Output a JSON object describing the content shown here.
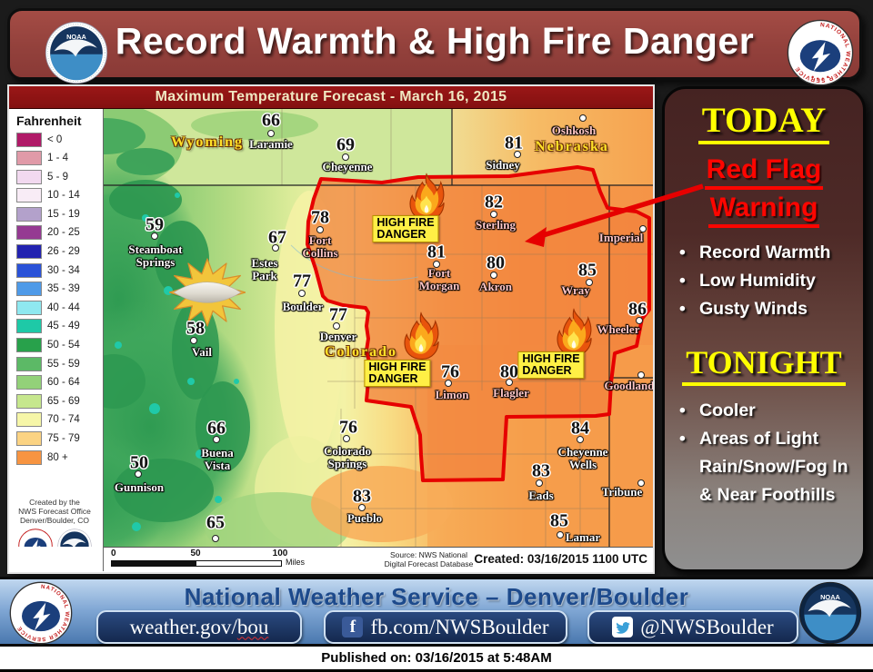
{
  "banner": {
    "title": "Record Warmth & High Fire Danger"
  },
  "logos": {
    "noaa_text": "NOAA",
    "nws_ring": "NATIONAL WEATHER SERVICE"
  },
  "colors": {
    "banner_bg": "#93413c",
    "map_title_bg": "#8e1414",
    "warning_red": "#e60000",
    "highlight_yellow": "#ffef45",
    "footer_navy": "#1d4a8c",
    "sidebar_yellow": "#ffff00"
  },
  "map": {
    "title": "Maximum Temperature Forecast - March 16, 2015",
    "legend": {
      "title": "Fahrenheit",
      "entries": [
        {
          "label": "< 0",
          "color": "#b01a68"
        },
        {
          "label": "1 - 4",
          "color": "#e09aa8"
        },
        {
          "label": "5 - 9",
          "color": "#f2d9f0"
        },
        {
          "label": "10 - 14",
          "color": "#f8ecf6"
        },
        {
          "label": "15 - 19",
          "color": "#b3a1cb"
        },
        {
          "label": "20 - 25",
          "color": "#953a92"
        },
        {
          "label": "26 - 29",
          "color": "#2222b0"
        },
        {
          "label": "30 - 34",
          "color": "#2a52d8"
        },
        {
          "label": "35 - 39",
          "color": "#4e9ae8"
        },
        {
          "label": "40 - 44",
          "color": "#8fe8f0"
        },
        {
          "label": "45 - 49",
          "color": "#1ec9a7"
        },
        {
          "label": "50 - 54",
          "color": "#28a14b"
        },
        {
          "label": "55 - 59",
          "color": "#5cb966"
        },
        {
          "label": "60 - 64",
          "color": "#93d179"
        },
        {
          "label": "65 - 69",
          "color": "#c6e78d"
        },
        {
          "label": "70 - 74",
          "color": "#f6f6a8"
        },
        {
          "label": "75 - 79",
          "color": "#fbd383"
        },
        {
          "label": "80 +",
          "color": "#f79441"
        }
      ]
    },
    "credit_lines": [
      "Created by the",
      "NWS Forecast Office",
      "Denver/Boulder, CO"
    ],
    "scale": {
      "ticks": [
        "0",
        "50",
        "100"
      ],
      "unit": "Miles"
    },
    "source_lines": [
      "Source: NWS National",
      "Digital Forecast Database"
    ],
    "created": "Created: 03/16/2015 1100 UTC",
    "states": [
      {
        "name": "Wyoming",
        "p": [
          228,
          156
        ]
      },
      {
        "name": "Nebraska",
        "p": [
          629,
          161
        ]
      },
      {
        "name": "Colorado",
        "p": [
          397,
          387
        ]
      }
    ],
    "cities": [
      {
        "name": "Laramie",
        "temp": "66",
        "t": [
          298,
          132
        ],
        "d": [
          298,
          146
        ],
        "n": [
          298,
          158
        ]
      },
      {
        "name": "Cheyenne",
        "temp": "69",
        "t": [
          380,
          159
        ],
        "d": [
          380,
          172
        ],
        "n": [
          382,
          183
        ]
      },
      {
        "name": "Sidney",
        "temp": "81",
        "t": [
          565,
          157
        ],
        "d": [
          569,
          169
        ],
        "n": [
          553,
          181
        ]
      },
      {
        "name": "Oshkosh",
        "d": [
          641,
          129
        ],
        "n": [
          631,
          143
        ],
        "tint": true
      },
      {
        "name": "Steamboat\nSprings",
        "temp": "59",
        "t": [
          170,
          247
        ],
        "d": [
          170,
          259
        ],
        "n": [
          171,
          281
        ]
      },
      {
        "name": "Estes\nPark",
        "temp": "67",
        "t": [
          305,
          261
        ],
        "d": [
          303,
          272
        ],
        "n": [
          291,
          296
        ]
      },
      {
        "name": "Fort\nCollins",
        "temp": "78",
        "t": [
          352,
          239
        ],
        "d": [
          352,
          252
        ],
        "n": [
          352,
          271
        ],
        "tint": true
      },
      {
        "name": "Boulder",
        "temp": "77",
        "t": [
          332,
          309
        ],
        "d": [
          332,
          322
        ],
        "n": [
          333,
          337
        ]
      },
      {
        "name": "Denver",
        "temp": "77",
        "t": [
          372,
          346
        ],
        "d": [
          370,
          358
        ],
        "n": [
          372,
          370
        ]
      },
      {
        "name": "Vail",
        "temp": "58",
        "t": [
          215,
          361
        ],
        "d": [
          213,
          374
        ],
        "n": [
          222,
          387
        ]
      },
      {
        "name": "Sterling",
        "temp": "82",
        "t": [
          543,
          222
        ],
        "d": [
          543,
          235
        ],
        "n": [
          545,
          247
        ],
        "tint": true
      },
      {
        "name": "Fort\nMorgan",
        "temp": "81",
        "t": [
          480,
          277
        ],
        "d": [
          480,
          290
        ],
        "n": [
          483,
          307
        ],
        "tint": true
      },
      {
        "name": "Akron",
        "temp": "80",
        "t": [
          545,
          289
        ],
        "d": [
          543,
          302
        ],
        "n": [
          545,
          315
        ],
        "tint": true
      },
      {
        "name": "Wray",
        "temp": "85",
        "t": [
          646,
          297
        ],
        "d": [
          648,
          310
        ],
        "n": [
          633,
          319
        ],
        "tint": true
      },
      {
        "name": "Imperial",
        "d": [
          707,
          251
        ],
        "n": [
          683,
          261
        ],
        "tint": true
      },
      {
        "name": "Wheeler",
        "temp": "86",
        "t": [
          701,
          340
        ],
        "d": [
          703,
          352
        ],
        "n": [
          680,
          362
        ],
        "tint": true
      },
      {
        "name": "Goodland",
        "d": [
          705,
          412
        ],
        "n": [
          692,
          424
        ],
        "tint": true
      },
      {
        "name": "Limon",
        "temp": "76",
        "t": [
          495,
          409
        ],
        "d": [
          493,
          421
        ],
        "n": [
          497,
          434
        ],
        "tint": true
      },
      {
        "name": "Flagler",
        "temp": "80",
        "t": [
          560,
          409
        ],
        "d": [
          560,
          420
        ],
        "n": [
          562,
          432
        ],
        "tint": true
      },
      {
        "name": "Buena\nVista",
        "temp": "66",
        "t": [
          238,
          471
        ],
        "d": [
          238,
          483
        ],
        "n": [
          239,
          505
        ]
      },
      {
        "name": "Gunnison",
        "temp": "50",
        "t": [
          153,
          509
        ],
        "d": [
          152,
          521
        ],
        "n": [
          153,
          536
        ]
      },
      {
        "name": "Colorado\nSprings",
        "temp": "76",
        "t": [
          383,
          470
        ],
        "d": [
          381,
          482
        ],
        "n": [
          382,
          503
        ]
      },
      {
        "name": "Pueblo",
        "temp": "83",
        "t": [
          398,
          546
        ],
        "d": [
          398,
          558
        ],
        "n": [
          401,
          570
        ]
      },
      {
        "temp": "65",
        "t": [
          237,
          575
        ],
        "d": [
          237,
          592
        ]
      },
      {
        "name": "Cheyenne\nWells",
        "temp": "84",
        "t": [
          638,
          471
        ],
        "d": [
          638,
          483
        ],
        "n": [
          641,
          504
        ]
      },
      {
        "name": "Eads",
        "temp": "83",
        "t": [
          595,
          518
        ],
        "d": [
          593,
          531
        ],
        "n": [
          595,
          545
        ]
      },
      {
        "name": "Tribune",
        "d": [
          705,
          531
        ],
        "n": [
          684,
          541
        ]
      },
      {
        "name": "Lamar",
        "temp": "85",
        "t": [
          615,
          573
        ],
        "d": [
          616,
          588
        ],
        "n": [
          641,
          591
        ]
      }
    ],
    "fire_badge": {
      "line1": "HIGH FIRE",
      "line2": "DANGER",
      "positions": [
        {
          "b": [
            446,
            251
          ],
          "f": [
            469,
            221
          ]
        },
        {
          "b": [
            437,
            410
          ],
          "f": [
            463,
            374
          ]
        },
        {
          "b": [
            606,
            401
          ],
          "f": [
            631,
            370
          ]
        }
      ]
    }
  },
  "sidebar": {
    "today": {
      "heading": "TODAY",
      "warning_lines": [
        "Red Flag",
        "Warning"
      ],
      "bullets": [
        "Record Warmth",
        "Low Humidity",
        "Gusty Winds"
      ]
    },
    "tonight": {
      "heading": "TONIGHT",
      "bullets": [
        "Cooler",
        "Areas of Light Rain/Snow/Fog In & Near Foothills"
      ]
    }
  },
  "footer": {
    "title": "National Weather Service – Denver/Boulder",
    "links": [
      {
        "pre": "weather.gov/",
        "tail": "bou"
      },
      {
        "icon": "facebook",
        "fb_glyph": "f",
        "label": "fb.com/NWSBoulder"
      },
      {
        "icon": "twitter",
        "label": "@NWSBoulder"
      }
    ]
  },
  "published": "Published on: 03/16/2015 at 5:48AM"
}
